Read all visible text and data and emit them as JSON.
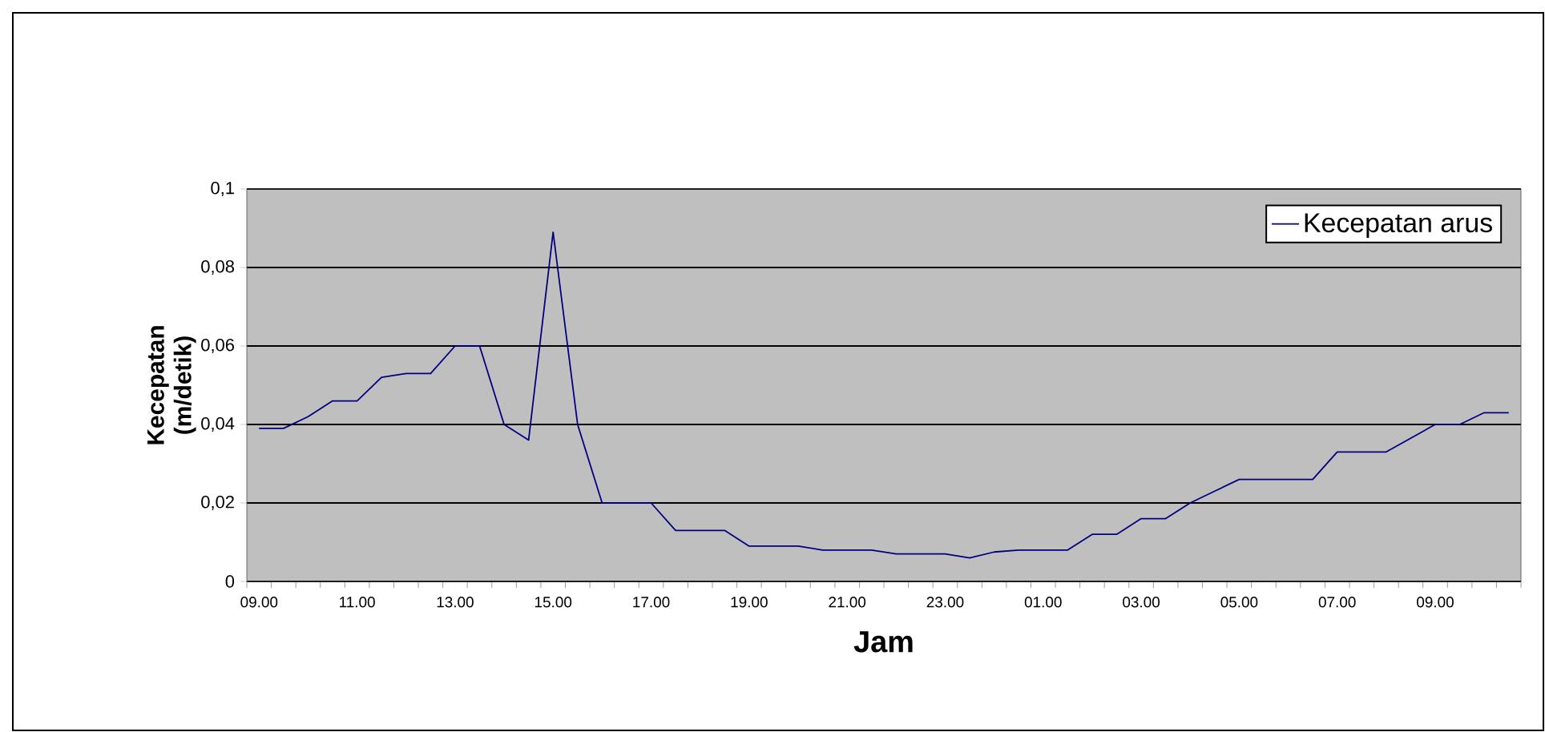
{
  "chart_data": {
    "type": "line",
    "xlabel": "Jam",
    "ylabel": "Kecepatan (m/detik)",
    "categories": [
      "09.00",
      null,
      null,
      null,
      "11.00",
      null,
      null,
      null,
      "13.00",
      null,
      null,
      null,
      "15.00",
      null,
      null,
      null,
      "17.00",
      null,
      null,
      null,
      "19.00",
      null,
      null,
      null,
      "21.00",
      null,
      null,
      null,
      "23.00",
      null,
      null,
      null,
      "01.00",
      null,
      null,
      null,
      "03.00",
      null,
      null,
      null,
      "05.00",
      null,
      null,
      null,
      "07.00",
      null,
      null,
      null,
      "09.00",
      null,
      null,
      null
    ],
    "series": [
      {
        "name": "Kecepatan arus",
        "color": "#000080",
        "values": [
          0.039,
          0.039,
          0.042,
          0.046,
          0.046,
          0.052,
          0.053,
          0.053,
          0.06,
          0.06,
          0.04,
          0.036,
          0.089,
          0.04,
          0.02,
          0.02,
          0.02,
          0.013,
          0.013,
          0.013,
          0.009,
          0.009,
          0.009,
          0.008,
          0.008,
          0.008,
          0.007,
          0.007,
          0.007,
          0.006,
          0.0075,
          0.008,
          0.008,
          0.008,
          0.012,
          0.012,
          0.016,
          0.016,
          0.02,
          0.023,
          0.026,
          0.026,
          0.026,
          0.026,
          0.033,
          0.033,
          0.033,
          0.0365,
          0.04,
          0.04,
          0.043,
          0.043
        ]
      }
    ],
    "ylim": [
      0,
      0.1
    ],
    "yticks": [
      0,
      {
        "value": 0.02,
        "label": "0,02"
      },
      {
        "value": 0.04,
        "label": "0,04"
      },
      {
        "value": 0.06,
        "label": "0,06"
      },
      {
        "value": 0.08,
        "label": "0,08"
      },
      {
        "value": 0.1,
        "label": "0,1"
      }
    ],
    "grid": "y",
    "legend": "top right",
    "marker": "none"
  }
}
